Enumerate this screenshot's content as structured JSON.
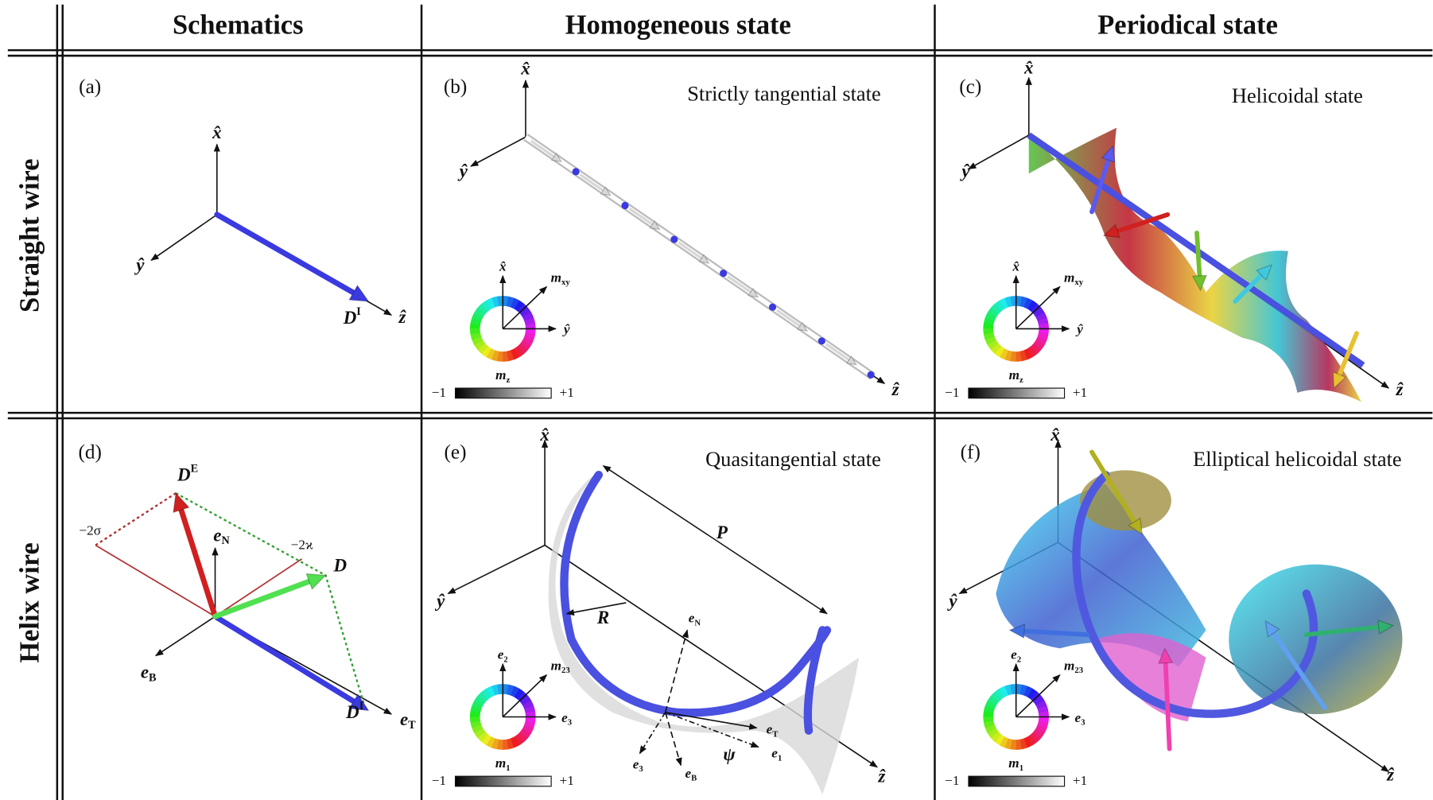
{
  "header": {
    "columns": [
      "Schematics",
      "Homogeneous state",
      "Periodical state"
    ]
  },
  "rows": [
    "Straight wire",
    "Helix wire"
  ],
  "panels": {
    "a": {
      "tag": "(a)",
      "x": "x̂",
      "y": "ŷ",
      "z": "ẑ",
      "D": {
        "base": "D",
        "sup": "I"
      }
    },
    "b": {
      "tag": "(b)",
      "title": "Strictly tangential state",
      "x": "x̂",
      "y": "ŷ",
      "z": "ẑ",
      "legend": {
        "top": "x̂",
        "diag": {
          "base": "m",
          "sub": "xy"
        },
        "right": "ŷ",
        "bottom": {
          "base": "m",
          "sub": "z"
        },
        "min": "−1",
        "max": "+1"
      }
    },
    "c": {
      "tag": "(c)",
      "title": "Helicoidal state",
      "x": "x̂",
      "y": "ŷ",
      "z": "ẑ",
      "legend": {
        "top": "x̂",
        "diag": {
          "base": "m",
          "sub": "xy"
        },
        "right": "ŷ",
        "bottom": {
          "base": "m",
          "sub": "z"
        },
        "min": "−1",
        "max": "+1"
      }
    },
    "d": {
      "tag": "(d)",
      "DE": {
        "base": "D",
        "sup": "E"
      },
      "eN": {
        "base": "e",
        "sub": "N"
      },
      "sigma": "−2σ",
      "kappa": "−2ϰ",
      "D": "D",
      "eB": {
        "base": "e",
        "sub": "B"
      },
      "DI": {
        "base": "D",
        "sup": "I"
      },
      "eT": {
        "base": "e",
        "sub": "T"
      }
    },
    "e": {
      "tag": "(e)",
      "title": "Quasitangential state",
      "x": "x̂",
      "y": "ŷ",
      "z": "ẑ",
      "P": "P",
      "R": "R",
      "eN": {
        "base": "e",
        "sub": "N"
      },
      "eT": {
        "base": "e",
        "sub": "T"
      },
      "e1": {
        "base": "e",
        "sub": "1"
      },
      "e3": {
        "base": "e",
        "sub": "3"
      },
      "eB": {
        "base": "e",
        "sub": "B"
      },
      "psi": "ψ",
      "legend": {
        "top": {
          "base": "e",
          "sub": "2"
        },
        "diag": {
          "base": "m",
          "sub": "23"
        },
        "right": {
          "base": "e",
          "sub": "3"
        },
        "bottom": {
          "base": "m",
          "sub": "1"
        },
        "min": "−1",
        "max": "+1"
      }
    },
    "f": {
      "tag": "(f)",
      "title": "Elliptical helicoidal state",
      "x": "x̂",
      "y": "ŷ",
      "z": "ẑ",
      "legend": {
        "top": {
          "base": "e",
          "sub": "2"
        },
        "diag": {
          "base": "m",
          "sub": "23"
        },
        "right": {
          "base": "e",
          "sub": "3"
        },
        "bottom": {
          "base": "m",
          "sub": "1"
        },
        "min": "−1",
        "max": "+1"
      }
    }
  }
}
